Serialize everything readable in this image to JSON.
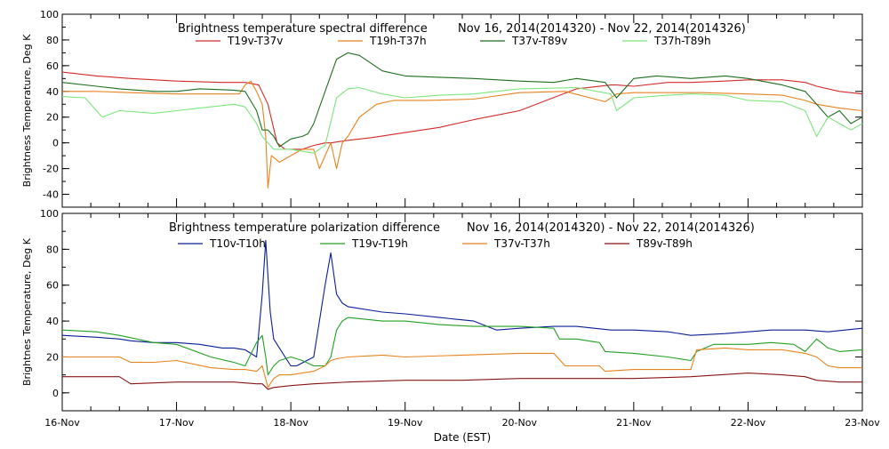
{
  "chart_data": [
    {
      "type": "line",
      "title": "Brightness temperature spectral difference",
      "date_range": "Nov 16, 2014(2014320) - Nov 22, 2014(2014326)",
      "ylabel": "Brightness Temperature, Deg K",
      "xlabel": "",
      "xlim": [
        0,
        7
      ],
      "ylim": [
        -50,
        100
      ],
      "yticks": [
        -40,
        -20,
        0,
        20,
        40,
        60,
        80,
        100
      ],
      "xtick_labels": [],
      "grid": false,
      "legend_position": "top",
      "series": [
        {
          "name": "T19v-T37v",
          "color": "#d42a2a",
          "x": [
            0,
            0.3,
            0.6,
            1.0,
            1.4,
            1.6,
            1.72,
            1.8,
            1.88,
            1.95,
            2.1,
            2.2,
            2.3,
            2.35,
            2.5,
            2.7,
            3.0,
            3.3,
            3.6,
            4.0,
            4.5,
            4.8,
            4.85,
            5.0,
            5.3,
            5.5,
            5.8,
            6.0,
            6.3,
            6.5,
            6.6,
            6.8,
            7.0
          ],
          "y": [
            55,
            52,
            50,
            48,
            47,
            47,
            45,
            30,
            0,
            -5,
            -5,
            -2,
            0,
            0,
            2,
            4,
            8,
            12,
            18,
            25,
            42,
            45,
            45,
            44,
            47,
            47,
            48,
            49,
            49,
            47,
            44,
            40,
            38
          ]
        },
        {
          "name": "T19h-T37h",
          "color": "#e8821e",
          "x": [
            0,
            0.3,
            0.6,
            1.0,
            1.4,
            1.55,
            1.6,
            1.65,
            1.7,
            1.75,
            1.78,
            1.8,
            1.83,
            1.9,
            2.0,
            2.1,
            2.2,
            2.25,
            2.3,
            2.35,
            2.4,
            2.45,
            2.5,
            2.6,
            2.75,
            2.9,
            3.2,
            3.6,
            4.0,
            4.4,
            4.75,
            4.85,
            5.0,
            5.3,
            5.6,
            6.0,
            6.3,
            6.5,
            6.6,
            6.8,
            7.0
          ],
          "y": [
            40,
            40,
            39,
            38,
            38,
            38,
            45,
            48,
            40,
            30,
            5,
            -35,
            -10,
            -15,
            -10,
            -5,
            -5,
            -20,
            -10,
            0,
            -20,
            0,
            5,
            20,
            30,
            33,
            33,
            34,
            39,
            40,
            32,
            38,
            39,
            39,
            39,
            38,
            37,
            33,
            30,
            27,
            25
          ]
        },
        {
          "name": "T37v-T89v",
          "color": "#1e6e1e",
          "x": [
            0,
            0.3,
            0.5,
            0.8,
            1.0,
            1.2,
            1.5,
            1.6,
            1.7,
            1.75,
            1.8,
            1.85,
            1.9,
            2.0,
            2.1,
            2.15,
            2.2,
            2.3,
            2.4,
            2.5,
            2.6,
            2.8,
            3.0,
            3.3,
            3.6,
            4.0,
            4.3,
            4.5,
            4.75,
            4.85,
            5.0,
            5.2,
            5.5,
            5.8,
            6.0,
            6.3,
            6.5,
            6.6,
            6.7,
            6.8,
            6.9,
            7.0
          ],
          "y": [
            47,
            44,
            42,
            40,
            40,
            42,
            41,
            40,
            25,
            10,
            10,
            5,
            -3,
            3,
            5,
            7,
            15,
            40,
            65,
            70,
            68,
            56,
            52,
            51,
            50,
            48,
            47,
            50,
            47,
            35,
            50,
            52,
            50,
            52,
            50,
            45,
            40,
            30,
            20,
            25,
            15,
            20
          ]
        },
        {
          "name": "T37h-T89h",
          "color": "#7ce67c",
          "x": [
            0,
            0.2,
            0.35,
            0.5,
            0.8,
            1.0,
            1.2,
            1.5,
            1.6,
            1.7,
            1.75,
            1.8,
            1.85,
            1.9,
            2.0,
            2.2,
            2.3,
            2.4,
            2.5,
            2.6,
            2.8,
            3.0,
            3.3,
            3.6,
            4.0,
            4.5,
            4.8,
            4.85,
            5.0,
            5.3,
            5.5,
            5.8,
            6.0,
            6.3,
            6.5,
            6.6,
            6.7,
            6.8,
            6.9,
            7.0
          ],
          "y": [
            36,
            35,
            20,
            25,
            23,
            25,
            27,
            30,
            28,
            15,
            5,
            0,
            -5,
            -5,
            -5,
            -8,
            -2,
            35,
            42,
            43,
            38,
            35,
            37,
            38,
            42,
            43,
            38,
            25,
            35,
            37,
            38,
            37,
            33,
            32,
            25,
            5,
            20,
            15,
            10,
            15
          ]
        }
      ]
    },
    {
      "type": "line",
      "title": "Brightness temperature polarization difference",
      "date_range": "Nov 16, 2014(2014320) - Nov 22, 2014(2014326)",
      "ylabel": "Brightnes Temperature, Deg K",
      "xlabel": "Date (EST)",
      "xlim": [
        0,
        7
      ],
      "ylim": [
        -10,
        100
      ],
      "yticks": [
        0,
        20,
        40,
        60,
        80,
        100
      ],
      "xtick_labels": [
        "16-Nov",
        "17-Nov",
        "18-Nov",
        "19-Nov",
        "20-Nov",
        "21-Nov",
        "22-Nov",
        "23-Nov"
      ],
      "grid": false,
      "legend_position": "top",
      "series": [
        {
          "name": "T10v-T10h",
          "color": "#0a1e96",
          "x": [
            0,
            0.3,
            0.5,
            0.6,
            0.8,
            1.0,
            1.2,
            1.4,
            1.5,
            1.6,
            1.7,
            1.75,
            1.78,
            1.8,
            1.82,
            1.85,
            1.9,
            1.95,
            2.0,
            2.05,
            2.2,
            2.3,
            2.35,
            2.4,
            2.45,
            2.5,
            2.8,
            3.0,
            3.3,
            3.6,
            3.8,
            4.0,
            4.3,
            4.5,
            4.8,
            5.0,
            5.3,
            5.5,
            5.8,
            6.0,
            6.2,
            6.5,
            6.7,
            7.0
          ],
          "y": [
            32,
            31,
            30,
            29,
            28,
            28,
            27,
            25,
            25,
            24,
            20,
            55,
            85,
            65,
            45,
            30,
            25,
            20,
            15,
            15,
            20,
            60,
            78,
            55,
            50,
            48,
            45,
            44,
            42,
            40,
            35,
            36,
            37,
            37,
            35,
            35,
            34,
            32,
            33,
            34,
            35,
            35,
            34,
            36
          ]
        },
        {
          "name": "T19v-T19h",
          "color": "#22a022",
          "x": [
            0,
            0.3,
            0.5,
            0.8,
            1.0,
            1.3,
            1.5,
            1.6,
            1.7,
            1.75,
            1.78,
            1.8,
            1.85,
            1.9,
            2.0,
            2.1,
            2.2,
            2.3,
            2.35,
            2.4,
            2.45,
            2.5,
            2.8,
            3.0,
            3.3,
            3.6,
            4.0,
            4.3,
            4.35,
            4.5,
            4.7,
            4.75,
            5.0,
            5.3,
            5.5,
            5.55,
            5.7,
            5.8,
            6.0,
            6.2,
            6.4,
            6.5,
            6.6,
            6.7,
            6.8,
            7.0
          ],
          "y": [
            35,
            34,
            32,
            28,
            27,
            20,
            17,
            15,
            28,
            32,
            20,
            10,
            15,
            18,
            20,
            18,
            15,
            15,
            20,
            35,
            40,
            42,
            40,
            40,
            38,
            37,
            37,
            36,
            30,
            30,
            28,
            23,
            22,
            20,
            18,
            23,
            27,
            27,
            27,
            28,
            27,
            23,
            30,
            25,
            23,
            24
          ]
        },
        {
          "name": "T37v-T37h",
          "color": "#e8821e",
          "x": [
            0,
            0.3,
            0.5,
            0.6,
            0.8,
            1.0,
            1.3,
            1.5,
            1.6,
            1.7,
            1.75,
            1.8,
            1.85,
            1.9,
            2.0,
            2.2,
            2.3,
            2.35,
            2.4,
            2.5,
            2.8,
            3.0,
            3.5,
            4.0,
            4.3,
            4.4,
            4.5,
            4.7,
            4.75,
            5.0,
            5.5,
            5.55,
            5.8,
            6.0,
            6.3,
            6.5,
            6.6,
            6.7,
            6.8,
            7.0
          ],
          "y": [
            20,
            20,
            20,
            17,
            17,
            18,
            14,
            13,
            13,
            12,
            15,
            3,
            8,
            10,
            10,
            12,
            15,
            18,
            19,
            20,
            21,
            20,
            21,
            22,
            22,
            15,
            15,
            15,
            12,
            13,
            13,
            24,
            25,
            24,
            24,
            22,
            20,
            15,
            14,
            14
          ]
        },
        {
          "name": "T89v-T89h",
          "color": "#8a1414",
          "x": [
            0,
            0.3,
            0.5,
            0.6,
            1.0,
            1.3,
            1.5,
            1.7,
            1.75,
            1.8,
            1.85,
            2.0,
            2.2,
            2.5,
            3.0,
            3.5,
            4.0,
            4.5,
            5.0,
            5.5,
            6.0,
            6.3,
            6.5,
            6.6,
            6.8,
            7.0
          ],
          "y": [
            9,
            9,
            9,
            5,
            6,
            6,
            6,
            5,
            5,
            2,
            3,
            4,
            5,
            6,
            7,
            7,
            8,
            8,
            8,
            9,
            11,
            10,
            9,
            7,
            6,
            6
          ]
        }
      ]
    }
  ]
}
